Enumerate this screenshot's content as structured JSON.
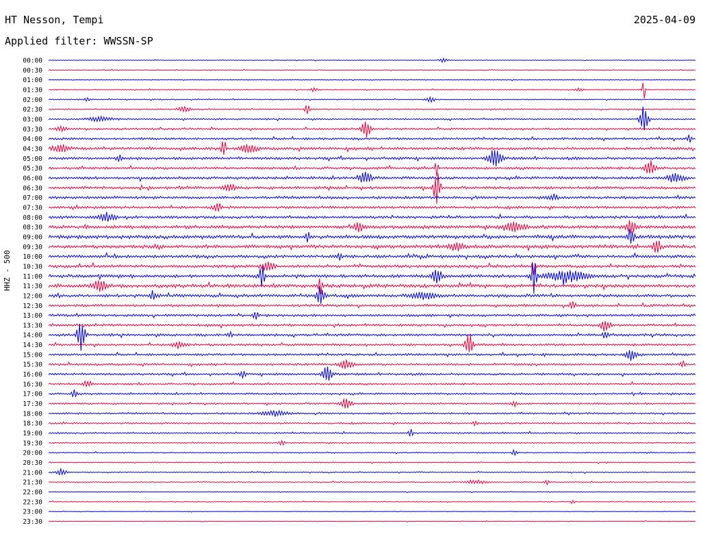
{
  "header": {
    "station": "HT Nesson, Tempi",
    "date": "2025-04-09",
    "filter": "Applied filter: WWSSN-SP"
  },
  "axis": {
    "ylabel": "HHZ - 500"
  },
  "chart_data": {
    "type": "line",
    "title": "HT Nesson, Tempi",
    "rows": [
      "00:00",
      "00:30",
      "01:00",
      "01:30",
      "02:00",
      "02:30",
      "03:00",
      "03:30",
      "04:00",
      "04:30",
      "05:00",
      "05:30",
      "06:00",
      "06:30",
      "07:00",
      "07:30",
      "08:00",
      "08:30",
      "09:00",
      "09:30",
      "10:00",
      "10:30",
      "11:00",
      "11:30",
      "12:00",
      "12:30",
      "13:00",
      "13:30",
      "14:00",
      "14:30",
      "15:00",
      "15:30",
      "16:00",
      "16:30",
      "17:00",
      "17:30",
      "18:00",
      "18:30",
      "19:00",
      "19:30",
      "20:00",
      "20:30",
      "21:00",
      "21:30",
      "22:00",
      "22:30",
      "23:00",
      "23:30"
    ],
    "colors": [
      "#0000d8",
      "#e8003c"
    ],
    "noise": [
      0.5,
      0.6,
      0.6,
      0.7,
      0.8,
      0.9,
      1.2,
      1.5,
      1.8,
      2.2,
      2.2,
      2.0,
      2.2,
      2.3,
      2.2,
      2.0,
      2.2,
      2.8,
      3.0,
      2.8,
      2.4,
      2.3,
      2.6,
      2.8,
      2.4,
      2.0,
      2.0,
      1.9,
      2.0,
      1.8,
      1.8,
      1.6,
      1.8,
      1.5,
      1.5,
      1.4,
      1.4,
      1.3,
      1.2,
      1.0,
      0.9,
      0.8,
      0.8,
      0.7,
      0.6,
      0.6,
      0.5,
      0.5
    ],
    "events": [
      {
        "row": 0,
        "t": 0.61,
        "a": 4,
        "w": 0.006
      },
      {
        "row": 3,
        "t": 0.41,
        "a": 3,
        "w": 0.005
      },
      {
        "row": 3,
        "t": 0.82,
        "a": 3,
        "w": 0.006
      },
      {
        "row": 3,
        "t": 0.92,
        "a": 16,
        "w": 0.002
      },
      {
        "row": 4,
        "t": 0.06,
        "a": 3,
        "w": 0.005
      },
      {
        "row": 4,
        "t": 0.59,
        "a": 5,
        "w": 0.006
      },
      {
        "row": 5,
        "t": 0.4,
        "a": 7,
        "w": 0.004
      },
      {
        "row": 5,
        "t": 0.21,
        "a": 4,
        "w": 0.01
      },
      {
        "row": 6,
        "t": 0.92,
        "a": 22,
        "w": 0.006
      },
      {
        "row": 6,
        "t": 0.08,
        "a": 3,
        "w": 0.02
      },
      {
        "row": 7,
        "t": 0.49,
        "a": 12,
        "w": 0.007
      },
      {
        "row": 7,
        "t": 0.02,
        "a": 4,
        "w": 0.008
      },
      {
        "row": 8,
        "t": 0.99,
        "a": 5,
        "w": 0.004
      },
      {
        "row": 9,
        "t": 0.27,
        "a": 14,
        "w": 0.003
      },
      {
        "row": 9,
        "t": 0.31,
        "a": 6,
        "w": 0.012
      },
      {
        "row": 9,
        "t": 0.02,
        "a": 6,
        "w": 0.01
      },
      {
        "row": 10,
        "t": 0.69,
        "a": 12,
        "w": 0.01
      },
      {
        "row": 10,
        "t": 0.11,
        "a": 5,
        "w": 0.004
      },
      {
        "row": 11,
        "t": 0.6,
        "a": 20,
        "w": 0.002
      },
      {
        "row": 11,
        "t": 0.93,
        "a": 12,
        "w": 0.008
      },
      {
        "row": 12,
        "t": 0.49,
        "a": 10,
        "w": 0.009
      },
      {
        "row": 12,
        "t": 0.97,
        "a": 6,
        "w": 0.012
      },
      {
        "row": 13,
        "t": 0.6,
        "a": 24,
        "w": 0.005
      },
      {
        "row": 13,
        "t": 0.28,
        "a": 6,
        "w": 0.008
      },
      {
        "row": 14,
        "t": 0.78,
        "a": 5,
        "w": 0.007
      },
      {
        "row": 15,
        "t": 0.26,
        "a": 5,
        "w": 0.006
      },
      {
        "row": 16,
        "t": 0.09,
        "a": 6,
        "w": 0.012
      },
      {
        "row": 17,
        "t": 0.48,
        "a": 8,
        "w": 0.006
      },
      {
        "row": 17,
        "t": 0.72,
        "a": 7,
        "w": 0.014
      },
      {
        "row": 17,
        "t": 0.9,
        "a": 10,
        "w": 0.008
      },
      {
        "row": 18,
        "t": 0.4,
        "a": 10,
        "w": 0.003
      },
      {
        "row": 18,
        "t": 0.9,
        "a": 12,
        "w": 0.004
      },
      {
        "row": 19,
        "t": 0.94,
        "a": 15,
        "w": 0.005
      },
      {
        "row": 19,
        "t": 0.63,
        "a": 6,
        "w": 0.01
      },
      {
        "row": 20,
        "t": 0.45,
        "a": 5,
        "w": 0.004
      },
      {
        "row": 21,
        "t": 0.75,
        "a": 18,
        "w": 0.002
      },
      {
        "row": 21,
        "t": 0.34,
        "a": 6,
        "w": 0.01
      },
      {
        "row": 22,
        "t": 0.33,
        "a": 26,
        "w": 0.003
      },
      {
        "row": 22,
        "t": 0.6,
        "a": 10,
        "w": 0.008
      },
      {
        "row": 22,
        "t": 0.75,
        "a": 24,
        "w": 0.004
      },
      {
        "row": 22,
        "t": 0.8,
        "a": 8,
        "w": 0.03
      },
      {
        "row": 23,
        "t": 0.42,
        "a": 14,
        "w": 0.003
      },
      {
        "row": 23,
        "t": 0.08,
        "a": 8,
        "w": 0.01
      },
      {
        "row": 24,
        "t": 0.42,
        "a": 16,
        "w": 0.006
      },
      {
        "row": 24,
        "t": 0.16,
        "a": 6,
        "w": 0.004
      },
      {
        "row": 24,
        "t": 0.58,
        "a": 5,
        "w": 0.02
      },
      {
        "row": 25,
        "t": 0.81,
        "a": 6,
        "w": 0.004
      },
      {
        "row": 26,
        "t": 0.32,
        "a": 5,
        "w": 0.005
      },
      {
        "row": 27,
        "t": 0.86,
        "a": 9,
        "w": 0.007
      },
      {
        "row": 28,
        "t": 0.05,
        "a": 22,
        "w": 0.006
      },
      {
        "row": 28,
        "t": 0.86,
        "a": 5,
        "w": 0.004
      },
      {
        "row": 28,
        "t": 0.28,
        "a": 4,
        "w": 0.004
      },
      {
        "row": 29,
        "t": 0.65,
        "a": 16,
        "w": 0.006
      },
      {
        "row": 29,
        "t": 0.2,
        "a": 5,
        "w": 0.008
      },
      {
        "row": 30,
        "t": 0.9,
        "a": 8,
        "w": 0.008
      },
      {
        "row": 31,
        "t": 0.46,
        "a": 7,
        "w": 0.01
      },
      {
        "row": 31,
        "t": 0.98,
        "a": 5,
        "w": 0.004
      },
      {
        "row": 32,
        "t": 0.43,
        "a": 14,
        "w": 0.007
      },
      {
        "row": 32,
        "t": 0.3,
        "a": 5,
        "w": 0.004
      },
      {
        "row": 33,
        "t": 0.06,
        "a": 4,
        "w": 0.008
      },
      {
        "row": 34,
        "t": 0.04,
        "a": 6,
        "w": 0.004
      },
      {
        "row": 35,
        "t": 0.46,
        "a": 10,
        "w": 0.007
      },
      {
        "row": 35,
        "t": 0.72,
        "a": 5,
        "w": 0.004
      },
      {
        "row": 36,
        "t": 0.35,
        "a": 4,
        "w": 0.02
      },
      {
        "row": 37,
        "t": 0.66,
        "a": 4,
        "w": 0.004
      },
      {
        "row": 38,
        "t": 0.56,
        "a": 6,
        "w": 0.003
      },
      {
        "row": 39,
        "t": 0.36,
        "a": 4,
        "w": 0.004
      },
      {
        "row": 40,
        "t": 0.72,
        "a": 4,
        "w": 0.004
      },
      {
        "row": 42,
        "t": 0.02,
        "a": 5,
        "w": 0.008
      },
      {
        "row": 43,
        "t": 0.66,
        "a": 3,
        "w": 0.015
      },
      {
        "row": 43,
        "t": 0.77,
        "a": 4,
        "w": 0.004
      },
      {
        "row": 45,
        "t": 0.81,
        "a": 3,
        "w": 0.003
      }
    ]
  }
}
